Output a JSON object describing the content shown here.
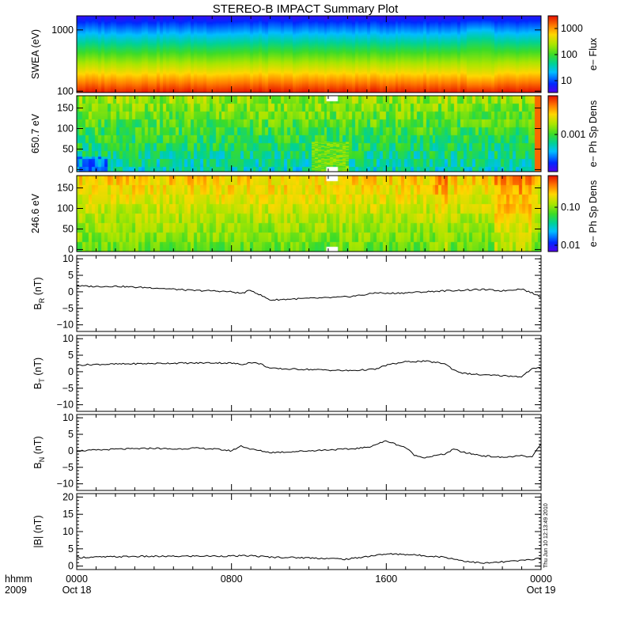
{
  "title": "STEREO-B IMPACT Summary Plot",
  "stamp": "Thu Jun 10 12:13:49 2010",
  "x_axis": {
    "row1_labels": [
      "hhmm",
      "0000",
      "0800",
      "1600",
      "0000"
    ],
    "row2_labels": [
      "2009",
      "Oct 18",
      "Oct 19"
    ]
  },
  "chart_data": [
    {
      "type": "heatmap",
      "panel": "swea-flux",
      "ylabel": "SWEA (eV)",
      "y_log": true,
      "ylim": [
        95,
        1700
      ],
      "yticks": [
        "1000",
        "100"
      ],
      "colorbar_label": "e− Flux",
      "colorbar_ticks": [
        "1000",
        "100",
        "10"
      ],
      "colorbar_log": true,
      "colorbar_range": [
        3,
        3000
      ]
    },
    {
      "type": "heatmap",
      "panel": "pad-650",
      "ylabel": "650.7 eV",
      "ylim": [
        -5,
        180
      ],
      "yticks": [
        "150",
        "100",
        "50",
        "0"
      ],
      "colorbar_label": "e− Ph Sp Dens",
      "colorbar_ticks": [
        "0.001"
      ]
    },
    {
      "type": "heatmap",
      "panel": "pad-246",
      "ylabel": "246.6 eV",
      "ylim": [
        -5,
        180
      ],
      "yticks": [
        "150",
        "100",
        "50",
        "0"
      ],
      "colorbar_label": "e− Ph Sp Dens",
      "colorbar_ticks": [
        "0.10",
        "0.01"
      ]
    },
    {
      "type": "line",
      "panel": "br",
      "ylabel_main": "B",
      "ylabel_sub": "R",
      "ylabel_tail": " (nT)",
      "ylim": [
        -12,
        11
      ],
      "yticks": [
        "10",
        "5",
        "0",
        "−5",
        "−10"
      ],
      "x_hours": [
        0,
        1,
        2,
        3,
        4,
        5,
        6,
        7,
        8,
        8.5,
        9,
        9.5,
        10,
        11,
        12,
        13,
        14,
        15,
        15.5,
        16,
        17,
        18,
        19,
        20,
        21,
        22,
        23,
        24
      ],
      "values": [
        1.8,
        1.6,
        1.7,
        1.4,
        1.2,
        0.8,
        0.4,
        0.3,
        0.0,
        -0.5,
        0.5,
        -1.0,
        -2.5,
        -2.2,
        -2.0,
        -1.8,
        -1.5,
        -0.8,
        -0.2,
        -0.5,
        -0.3,
        0.0,
        0.3,
        0.5,
        0.7,
        0.3,
        0.9,
        -1.5
      ]
    },
    {
      "type": "line",
      "panel": "bt",
      "ylabel_main": "B",
      "ylabel_sub": "T",
      "ylabel_tail": " (nT)",
      "ylim": [
        -12,
        11
      ],
      "yticks": [
        "10",
        "5",
        "0",
        "−5",
        "−10"
      ],
      "x_hours": [
        0,
        1,
        2,
        3,
        4,
        5,
        6,
        7,
        8,
        8.5,
        9,
        9.5,
        10,
        11,
        12,
        13,
        14,
        15,
        15.5,
        16,
        17,
        18,
        19,
        19.5,
        20,
        21,
        22,
        23,
        23.5,
        24
      ],
      "values": [
        2.0,
        2.2,
        2.3,
        2.4,
        2.5,
        2.6,
        2.6,
        2.7,
        2.6,
        2.2,
        2.8,
        2.4,
        1.0,
        0.8,
        0.7,
        0.5,
        0.3,
        0.6,
        0.8,
        2.0,
        3.0,
        3.2,
        2.5,
        0.5,
        -0.5,
        -1.0,
        -1.2,
        -1.5,
        0.8,
        1.2
      ]
    },
    {
      "type": "line",
      "panel": "bn",
      "ylabel_main": "B",
      "ylabel_sub": "N",
      "ylabel_tail": " (nT)",
      "ylim": [
        -12,
        11
      ],
      "yticks": [
        "10",
        "5",
        "0",
        "−5",
        "−10"
      ],
      "x_hours": [
        0,
        1,
        2,
        3,
        4,
        5,
        6,
        7,
        8,
        8.5,
        9,
        9.5,
        10,
        11,
        12,
        13,
        14,
        15,
        15.5,
        16,
        17,
        17.5,
        18,
        19,
        19.5,
        20,
        21,
        22,
        23,
        23.5,
        24
      ],
      "values": [
        0.0,
        0.2,
        0.5,
        0.6,
        0.8,
        0.5,
        0.8,
        0.6,
        0.0,
        1.5,
        0.5,
        0.0,
        -0.5,
        -0.3,
        0.0,
        0.3,
        0.5,
        1.0,
        2.0,
        3.0,
        1.0,
        -1.5,
        -2.0,
        -1.0,
        0.5,
        -0.5,
        -1.5,
        -2.0,
        -1.5,
        -2.0,
        2.0
      ]
    },
    {
      "type": "line",
      "panel": "bmag",
      "ylabel_main": "|B| (nT)",
      "ylim": [
        -1,
        21
      ],
      "yticks": [
        "20",
        "15",
        "10",
        "5",
        "0"
      ],
      "x_hours": [
        0,
        1,
        2,
        3,
        4,
        5,
        6,
        7,
        8,
        9,
        10,
        11,
        12,
        13,
        14,
        15,
        16,
        17,
        18,
        19,
        20,
        21,
        22,
        23,
        24
      ],
      "values": [
        2.5,
        2.6,
        2.7,
        2.8,
        2.8,
        2.8,
        2.9,
        2.9,
        2.9,
        3.0,
        2.6,
        2.5,
        2.4,
        2.2,
        2.0,
        2.8,
        3.5,
        3.4,
        3.0,
        2.6,
        1.5,
        0.8,
        1.2,
        1.6,
        2.3
      ]
    }
  ]
}
